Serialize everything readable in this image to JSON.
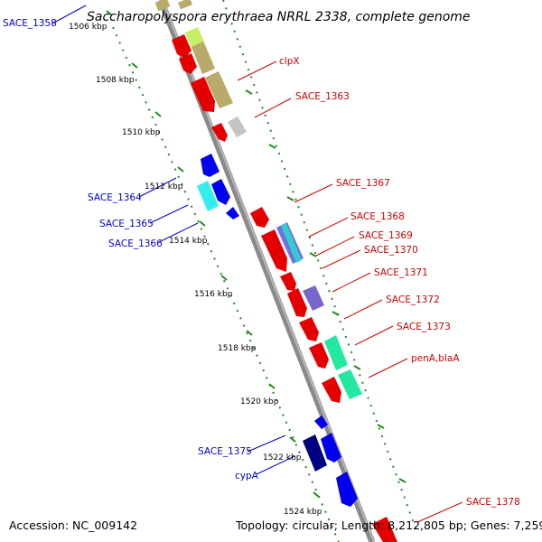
{
  "title": "Saccharopolyspora erythraea NRRL 2338, complete genome",
  "footer": {
    "accession": "Accession: NC_009142",
    "topology": "Topology: circular; Length: 8,212,805 bp; Genes: 7,259"
  },
  "colors": {
    "forward_label": "#cc0000",
    "reverse_label": "#0000cc",
    "backbone": "#8a8a8a",
    "tick_dots": "#228b22"
  },
  "ticks": [
    "1506 kbp",
    "1508 kbp",
    "1510 kbp",
    "1512 kbp",
    "1514 kbp",
    "1516 kbp",
    "1518 kbp",
    "1520 kbp",
    "1522 kbp",
    "1524 kbp"
  ],
  "forward_labels": [
    "clpX",
    "SACE_1363",
    "SACE_1367",
    "SACE_1368",
    "SACE_1369",
    "SACE_1370",
    "SACE_1371",
    "SACE_1372",
    "SACE_1373",
    "penA,blaA",
    "SACE_1378"
  ],
  "reverse_labels": [
    "SACE_1358",
    "SACE_1364",
    "SACE_1365",
    "SACE_1366",
    "SACE_1375",
    "cypA"
  ]
}
